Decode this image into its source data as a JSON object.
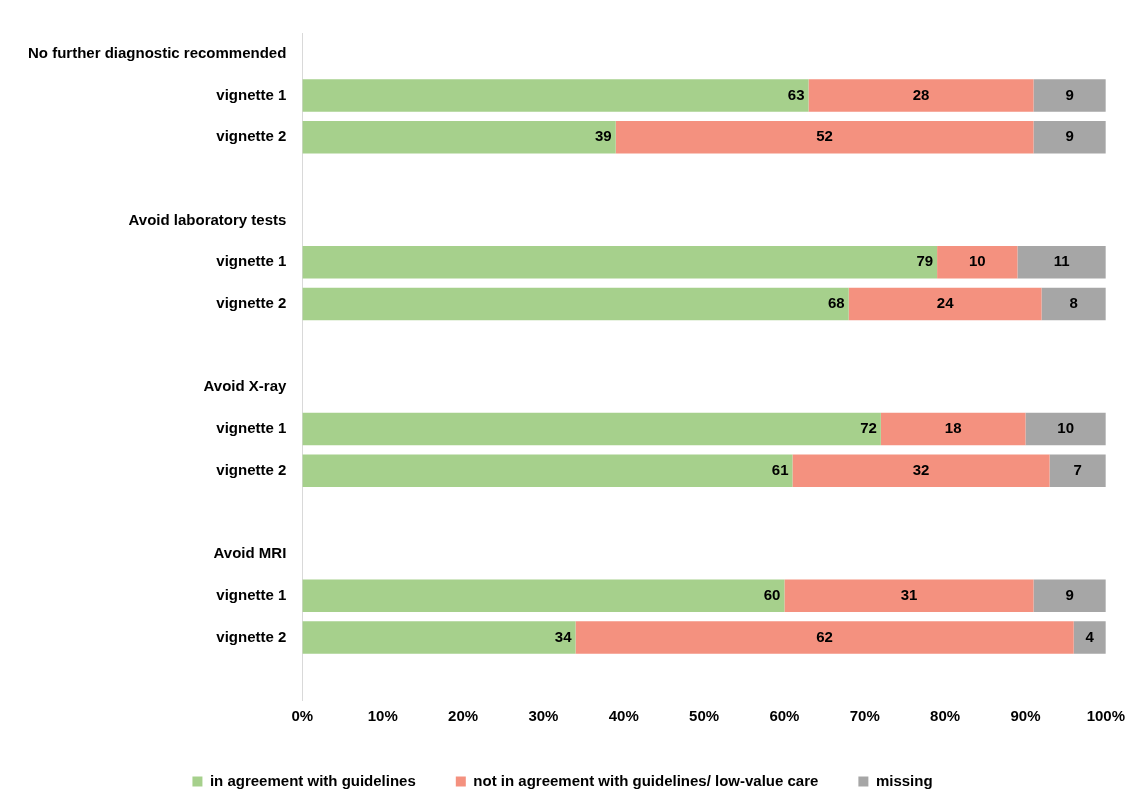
{
  "chart_data": {
    "type": "bar",
    "orientation": "horizontal",
    "stacked": true,
    "categories": [
      "No further diagnostic recommended",
      "vignette 1",
      "vignette 2",
      null,
      "Avoid laboratory tests",
      "vignette 1",
      "vignette 2",
      null,
      "Avoid X-ray",
      "vignette 1",
      "vignette 2",
      null,
      "Avoid MRI",
      "vignette 1",
      "vignette 2",
      null
    ],
    "series": [
      {
        "name": "in agreement with guidelines",
        "color": "#a6d08c",
        "values": [
          null,
          63,
          39,
          null,
          null,
          79,
          68,
          null,
          null,
          72,
          61,
          null,
          null,
          60,
          34,
          null
        ]
      },
      {
        "name": "not in agreement with guidelines/ low-value care",
        "color": "#f4917f",
        "values": [
          null,
          28,
          52,
          null,
          null,
          10,
          24,
          null,
          null,
          18,
          32,
          null,
          null,
          31,
          62,
          null
        ]
      },
      {
        "name": "missing",
        "color": "#a6a6a6",
        "values": [
          null,
          9,
          9,
          null,
          null,
          11,
          8,
          null,
          null,
          10,
          7,
          null,
          null,
          9,
          4,
          null
        ]
      }
    ],
    "xlim": [
      0,
      100
    ],
    "xticks": [
      {
        "value": 0,
        "label": "0%"
      },
      {
        "value": 10,
        "label": "10%"
      },
      {
        "value": 20,
        "label": "20%"
      },
      {
        "value": 30,
        "label": "30%"
      },
      {
        "value": 40,
        "label": "40%"
      },
      {
        "value": 50,
        "label": "50%"
      },
      {
        "value": 60,
        "label": "60%"
      },
      {
        "value": 70,
        "label": "70%"
      },
      {
        "value": 80,
        "label": "80%"
      },
      {
        "value": 90,
        "label": "90%"
      },
      {
        "value": 100,
        "label": "100%"
      }
    ],
    "grid": false,
    "legend": "bottom",
    "data_labels": true
  }
}
